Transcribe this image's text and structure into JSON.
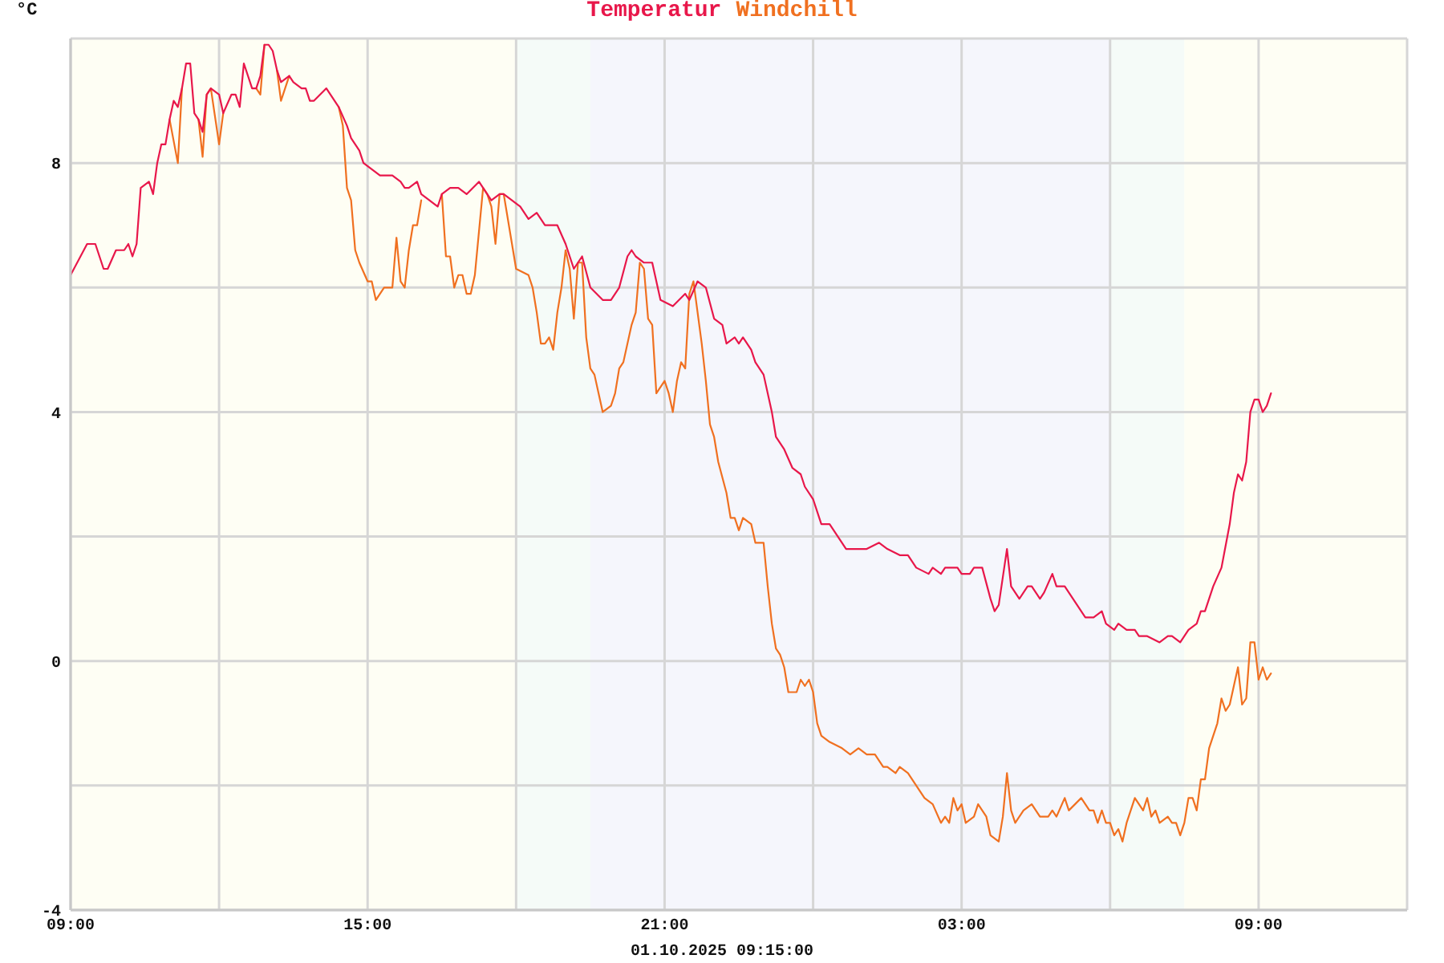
{
  "chart_data": {
    "type": "line",
    "ylabel": "°C",
    "annotations": [
      "01.10.2025 09:15:00"
    ],
    "legend": "top",
    "grid": true,
    "xlim": [
      "2025-09-30T09:00",
      "2025-10-01T12:00"
    ],
    "xticks": [
      {
        "value": "2025-09-30T09:00",
        "label": "09:00"
      },
      {
        "value": "2025-09-30T12:00",
        "label": null
      },
      {
        "value": "2025-09-30T15:00",
        "label": "15:00"
      },
      {
        "value": "2025-09-30T18:00",
        "label": null
      },
      {
        "value": "2025-09-30T21:00",
        "label": "21:00"
      },
      {
        "value": "2025-10-01T00:00",
        "label": null
      },
      {
        "value": "2025-10-01T03:00",
        "label": "03:00"
      },
      {
        "value": "2025-10-01T06:00",
        "label": null
      },
      {
        "value": "2025-10-01T09:00",
        "label": "09:00"
      },
      {
        "value": "2025-10-01T12:00",
        "label": null
      }
    ],
    "ylim": [
      -4,
      10
    ],
    "yticks": [
      -4,
      {
        "value": -2,
        "label": null
      },
      0,
      {
        "value": 2,
        "label": null
      },
      4,
      {
        "value": 6,
        "label": null
      },
      8,
      {
        "value": 10,
        "label": null
      }
    ],
    "bands": [
      {
        "axis": "x",
        "from": "2025-09-30T09:00",
        "to": "2025-09-30T18:00",
        "color": "#fefef4"
      },
      {
        "axis": "x",
        "from": "2025-09-30T18:00",
        "to": "2025-09-30T19:30",
        "color": "#f5fbf8"
      },
      {
        "axis": "x",
        "from": "2025-09-30T19:30",
        "to": "2025-10-01T06:00",
        "color": "#f5f6fc"
      },
      {
        "axis": "x",
        "from": "2025-10-01T06:00",
        "to": "2025-10-01T07:30",
        "color": "#f5fbf8"
      },
      {
        "axis": "x",
        "from": "2025-10-01T07:30",
        "to": "2025-10-01T12:00",
        "color": "#fefef4"
      }
    ],
    "series": [
      {
        "name": "Temperatur",
        "color": "#e8174a",
        "x": [
          "2025-09-30T09:00",
          "2025-09-30T09:20",
          "2025-09-30T09:30",
          "2025-09-30T09:40",
          "2025-09-30T09:45",
          "2025-09-30T09:55",
          "2025-09-30T10:05",
          "2025-09-30T10:10",
          "2025-09-30T10:15",
          "2025-09-30T10:20",
          "2025-09-30T10:25",
          "2025-09-30T10:35",
          "2025-09-30T10:40",
          "2025-09-30T10:45",
          "2025-09-30T10:50",
          "2025-09-30T10:55",
          "2025-09-30T11:00",
          "2025-09-30T11:05",
          "2025-09-30T11:10",
          "2025-09-30T11:15",
          "2025-09-30T11:20",
          "2025-09-30T11:25",
          "2025-09-30T11:30",
          "2025-09-30T11:35",
          "2025-09-30T11:40",
          "2025-09-30T11:45",
          "2025-09-30T11:50",
          "2025-09-30T12:00",
          "2025-09-30T12:05",
          "2025-09-30T12:15",
          "2025-09-30T12:20",
          "2025-09-30T12:25",
          "2025-09-30T12:30",
          "2025-09-30T12:40",
          "2025-09-30T12:45",
          "2025-09-30T12:50",
          "2025-09-30T12:55",
          "2025-09-30T13:00",
          "2025-09-30T13:05",
          "2025-09-30T13:10",
          "2025-09-30T13:15",
          "2025-09-30T13:25",
          "2025-09-30T13:30",
          "2025-09-30T13:40",
          "2025-09-30T13:45",
          "2025-09-30T13:50",
          "2025-09-30T13:55",
          "2025-09-30T14:10",
          "2025-09-30T14:15",
          "2025-09-30T14:25",
          "2025-09-30T14:35",
          "2025-09-30T14:40",
          "2025-09-30T14:50",
          "2025-09-30T14:55",
          "2025-09-30T15:05",
          "2025-09-30T15:15",
          "2025-09-30T15:20",
          "2025-09-30T15:30",
          "2025-09-30T15:40",
          "2025-09-30T15:45",
          "2025-09-30T15:50",
          "2025-09-30T16:00",
          "2025-09-30T16:05",
          "2025-09-30T16:15",
          "2025-09-30T16:25",
          "2025-09-30T16:30",
          "2025-09-30T16:40",
          "2025-09-30T16:50",
          "2025-09-30T17:00",
          "2025-09-30T17:15",
          "2025-09-30T17:25",
          "2025-09-30T17:30",
          "2025-09-30T17:40",
          "2025-09-30T17:45",
          "2025-09-30T17:55",
          "2025-09-30T18:05",
          "2025-09-30T18:15",
          "2025-09-30T18:25",
          "2025-09-30T18:35",
          "2025-09-30T18:50",
          "2025-09-30T19:00",
          "2025-09-30T19:10",
          "2025-09-30T19:20",
          "2025-09-30T19:30",
          "2025-09-30T19:45",
          "2025-09-30T19:55",
          "2025-09-30T20:05",
          "2025-09-30T20:15",
          "2025-09-30T20:20",
          "2025-09-30T20:25",
          "2025-09-30T20:35",
          "2025-09-30T20:45",
          "2025-09-30T20:55",
          "2025-09-30T21:10",
          "2025-09-30T21:25",
          "2025-09-30T21:30",
          "2025-09-30T21:40",
          "2025-09-30T21:50",
          "2025-09-30T22:00",
          "2025-09-30T22:10",
          "2025-09-30T22:15",
          "2025-09-30T22:25",
          "2025-09-30T22:30",
          "2025-09-30T22:35",
          "2025-09-30T22:45",
          "2025-09-30T22:50",
          "2025-09-30T23:00",
          "2025-09-30T23:10",
          "2025-09-30T23:15",
          "2025-09-30T23:25",
          "2025-09-30T23:35",
          "2025-09-30T23:45",
          "2025-09-30T23:50",
          "2025-10-01T00:00",
          "2025-10-01T00:10",
          "2025-10-01T00:20",
          "2025-10-01T00:30",
          "2025-10-01T00:40",
          "2025-10-01T00:50",
          "2025-10-01T01:05",
          "2025-10-01T01:20",
          "2025-10-01T01:30",
          "2025-10-01T01:45",
          "2025-10-01T01:55",
          "2025-10-01T02:05",
          "2025-10-01T02:20",
          "2025-10-01T02:25",
          "2025-10-01T02:35",
          "2025-10-01T02:40",
          "2025-10-01T02:55",
          "2025-10-01T03:00",
          "2025-10-01T03:10",
          "2025-10-01T03:15",
          "2025-10-01T03:25",
          "2025-10-01T03:35",
          "2025-10-01T03:40",
          "2025-10-01T03:45",
          "2025-10-01T03:55",
          "2025-10-01T04:00",
          "2025-10-01T04:10",
          "2025-10-01T04:20",
          "2025-10-01T04:25",
          "2025-10-01T04:35",
          "2025-10-01T04:40",
          "2025-10-01T04:50",
          "2025-10-01T04:55",
          "2025-10-01T05:05",
          "2025-10-01T05:15",
          "2025-10-01T05:20",
          "2025-10-01T05:30",
          "2025-10-01T05:40",
          "2025-10-01T05:50",
          "2025-10-01T05:55",
          "2025-10-01T06:05",
          "2025-10-01T06:10",
          "2025-10-01T06:20",
          "2025-10-01T06:30",
          "2025-10-01T06:35",
          "2025-10-01T06:45",
          "2025-10-01T07:00",
          "2025-10-01T07:10",
          "2025-10-01T07:15",
          "2025-10-01T07:25",
          "2025-10-01T07:35",
          "2025-10-01T07:45",
          "2025-10-01T07:50",
          "2025-10-01T07:55",
          "2025-10-01T08:05",
          "2025-10-01T08:15",
          "2025-10-01T08:25",
          "2025-10-01T08:30",
          "2025-10-01T08:35",
          "2025-10-01T08:40",
          "2025-10-01T08:45",
          "2025-10-01T08:50",
          "2025-10-01T08:55",
          "2025-10-01T09:00",
          "2025-10-01T09:05",
          "2025-10-01T09:10",
          "2025-10-01T09:15"
        ],
        "values": [
          6.2,
          6.7,
          6.7,
          6.3,
          6.3,
          6.6,
          6.6,
          6.7,
          6.5,
          6.7,
          7.6,
          7.7,
          7.5,
          8.0,
          8.3,
          8.3,
          8.7,
          9.0,
          8.9,
          9.2,
          9.6,
          9.6,
          8.8,
          8.7,
          8.5,
          9.1,
          9.2,
          9.1,
          8.8,
          9.1,
          9.1,
          8.9,
          9.6,
          9.2,
          9.2,
          9.4,
          9.9,
          9.9,
          9.8,
          9.5,
          9.3,
          9.4,
          9.3,
          9.2,
          9.2,
          9.0,
          9.0,
          9.2,
          9.1,
          8.9,
          8.6,
          8.4,
          8.2,
          8.0,
          7.9,
          7.8,
          7.8,
          7.8,
          7.7,
          7.6,
          7.6,
          7.7,
          7.5,
          7.4,
          7.3,
          7.5,
          7.6,
          7.6,
          7.5,
          7.7,
          7.5,
          7.4,
          7.5,
          7.5,
          7.4,
          7.3,
          7.1,
          7.2,
          7.0,
          7.0,
          6.7,
          6.3,
          6.5,
          6.0,
          5.8,
          5.8,
          6.0,
          6.5,
          6.6,
          6.5,
          6.4,
          6.4,
          5.8,
          5.7,
          5.9,
          5.8,
          6.1,
          6.0,
          5.5,
          5.4,
          5.1,
          5.2,
          5.1,
          5.2,
          5.0,
          4.8,
          4.6,
          4.0,
          3.6,
          3.4,
          3.1,
          3.0,
          2.8,
          2.6,
          2.2,
          2.2,
          2.0,
          1.8,
          1.8,
          1.8,
          1.9,
          1.8,
          1.7,
          1.7,
          1.5,
          1.4,
          1.5,
          1.4,
          1.5,
          1.5,
          1.4,
          1.4,
          1.5,
          1.5,
          1.0,
          0.8,
          0.9,
          1.8,
          1.2,
          1.0,
          1.2,
          1.2,
          1.0,
          1.1,
          1.4,
          1.2,
          1.2,
          1.0,
          0.9,
          0.7,
          0.7,
          0.8,
          0.6,
          0.5,
          0.6,
          0.5,
          0.5,
          0.4,
          0.4,
          0.3,
          0.4,
          0.4,
          0.3,
          0.5,
          0.6,
          0.8,
          0.8,
          1.2,
          1.5,
          2.2,
          2.7,
          3.0,
          2.9,
          3.2,
          4.0,
          4.2,
          4.2,
          4.0,
          4.1,
          4.3
        ]
      },
      {
        "name": "Windchill",
        "color": "#f07020",
        "x": [
          "2025-09-30T11:00",
          "2025-09-30T11:10",
          "2025-09-30T11:15",
          "2025-09-30T11:25",
          "2025-09-30T11:35",
          "2025-09-30T11:40",
          "2025-09-30T11:45",
          "2025-09-30T11:50",
          "2025-09-30T12:00",
          "2025-09-30T12:05",
          "2025-09-30T12:25",
          "2025-09-30T12:45",
          "2025-09-30T12:50",
          "2025-09-30T12:55",
          "2025-09-30T13:00",
          "2025-09-30T13:10",
          "2025-09-30T13:15",
          "2025-09-30T13:25",
          "2025-09-30T13:50",
          "2025-09-30T14:25",
          "2025-09-30T14:30",
          "2025-09-30T14:35",
          "2025-09-30T14:40",
          "2025-09-30T14:45",
          "2025-09-30T14:50",
          "2025-09-30T15:00",
          "2025-09-30T15:05",
          "2025-09-30T15:10",
          "2025-09-30T15:15",
          "2025-09-30T15:20",
          "2025-09-30T15:30",
          "2025-09-30T15:35",
          "2025-09-30T15:40",
          "2025-09-30T15:45",
          "2025-09-30T15:50",
          "2025-09-30T15:55",
          "2025-09-30T16:00",
          "2025-09-30T16:05",
          "2025-09-30T16:15",
          "2025-09-30T16:30",
          "2025-09-30T16:35",
          "2025-09-30T16:40",
          "2025-09-30T16:45",
          "2025-09-30T16:50",
          "2025-09-30T16:55",
          "2025-09-30T17:00",
          "2025-09-30T17:05",
          "2025-09-30T17:10",
          "2025-09-30T17:20",
          "2025-09-30T17:25",
          "2025-09-30T17:30",
          "2025-09-30T17:35",
          "2025-09-30T17:40",
          "2025-09-30T17:45",
          "2025-09-30T17:55",
          "2025-09-30T18:00",
          "2025-09-30T18:15",
          "2025-09-30T18:20",
          "2025-09-30T18:25",
          "2025-09-30T18:30",
          "2025-09-30T18:35",
          "2025-09-30T18:40",
          "2025-09-30T18:45",
          "2025-09-30T18:50",
          "2025-09-30T18:55",
          "2025-09-30T19:00",
          "2025-09-30T19:05",
          "2025-09-30T19:10",
          "2025-09-30T19:15",
          "2025-09-30T19:20",
          "2025-09-30T19:25",
          "2025-09-30T19:30",
          "2025-09-30T19:35",
          "2025-09-30T19:40",
          "2025-09-30T19:45",
          "2025-09-30T19:55",
          "2025-09-30T20:00",
          "2025-09-30T20:05",
          "2025-09-30T20:10",
          "2025-09-30T20:20",
          "2025-09-30T20:25",
          "2025-09-30T20:30",
          "2025-09-30T20:35",
          "2025-09-30T20:40",
          "2025-09-30T20:45",
          "2025-09-30T20:50",
          "2025-09-30T21:00",
          "2025-09-30T21:05",
          "2025-09-30T21:10",
          "2025-09-30T21:15",
          "2025-09-30T21:20",
          "2025-09-30T21:25",
          "2025-09-30T21:30",
          "2025-09-30T21:35",
          "2025-09-30T21:45",
          "2025-09-30T21:50",
          "2025-09-30T21:55",
          "2025-09-30T22:00",
          "2025-09-30T22:05",
          "2025-09-30T22:15",
          "2025-09-30T22:20",
          "2025-09-30T22:25",
          "2025-09-30T22:30",
          "2025-09-30T22:35",
          "2025-09-30T22:45",
          "2025-09-30T22:50",
          "2025-09-30T23:00",
          "2025-09-30T23:05",
          "2025-09-30T23:10",
          "2025-09-30T23:15",
          "2025-09-30T23:20",
          "2025-09-30T23:25",
          "2025-09-30T23:30",
          "2025-09-30T23:40",
          "2025-09-30T23:45",
          "2025-09-30T23:50",
          "2025-09-30T23:55",
          "2025-10-01T00:00",
          "2025-10-01T00:05",
          "2025-10-01T00:10",
          "2025-10-01T00:20",
          "2025-10-01T00:35",
          "2025-10-01T00:45",
          "2025-10-01T00:55",
          "2025-10-01T01:05",
          "2025-10-01T01:15",
          "2025-10-01T01:25",
          "2025-10-01T01:30",
          "2025-10-01T01:40",
          "2025-10-01T01:45",
          "2025-10-01T01:55",
          "2025-10-01T02:05",
          "2025-10-01T02:15",
          "2025-10-01T02:25",
          "2025-10-01T02:35",
          "2025-10-01T02:40",
          "2025-10-01T02:45",
          "2025-10-01T02:50",
          "2025-10-01T02:55",
          "2025-10-01T03:00",
          "2025-10-01T03:05",
          "2025-10-01T03:15",
          "2025-10-01T03:20",
          "2025-10-01T03:30",
          "2025-10-01T03:35",
          "2025-10-01T03:45",
          "2025-10-01T03:50",
          "2025-10-01T03:55",
          "2025-10-01T04:00",
          "2025-10-01T04:05",
          "2025-10-01T04:15",
          "2025-10-01T04:25",
          "2025-10-01T04:30",
          "2025-10-01T04:35",
          "2025-10-01T04:45",
          "2025-10-01T04:50",
          "2025-10-01T04:55",
          "2025-10-01T05:05",
          "2025-10-01T05:10",
          "2025-10-01T05:25",
          "2025-10-01T05:35",
          "2025-10-01T05:40",
          "2025-10-01T05:45",
          "2025-10-01T05:50",
          "2025-10-01T05:55",
          "2025-10-01T06:00",
          "2025-10-01T06:05",
          "2025-10-01T06:10",
          "2025-10-01T06:15",
          "2025-10-01T06:20",
          "2025-10-01T06:30",
          "2025-10-01T06:35",
          "2025-10-01T06:40",
          "2025-10-01T06:45",
          "2025-10-01T06:50",
          "2025-10-01T06:55",
          "2025-10-01T07:00",
          "2025-10-01T07:10",
          "2025-10-01T07:15",
          "2025-10-01T07:20",
          "2025-10-01T07:25",
          "2025-10-01T07:30",
          "2025-10-01T07:35",
          "2025-10-01T07:40",
          "2025-10-01T07:45",
          "2025-10-01T07:50",
          "2025-10-01T07:55",
          "2025-10-01T08:00",
          "2025-10-01T08:10",
          "2025-10-01T08:15",
          "2025-10-01T08:20",
          "2025-10-01T08:25",
          "2025-10-01T08:30",
          "2025-10-01T08:35",
          "2025-10-01T08:40",
          "2025-10-01T08:45",
          "2025-10-01T08:50",
          "2025-10-01T08:55",
          "2025-10-01T09:00",
          "2025-10-01T09:05",
          "2025-10-01T09:10",
          "2025-10-01T09:15"
        ],
        "values": [
          8.7,
          8.0,
          9.2,
          null,
          8.7,
          8.1,
          9.1,
          9.2,
          8.3,
          8.8,
          null,
          9.2,
          9.1,
          9.9,
          null,
          9.5,
          9.0,
          9.4,
          null,
          8.9,
          8.6,
          7.6,
          7.4,
          6.6,
          6.4,
          6.1,
          6.1,
          5.8,
          5.9,
          6.0,
          6.0,
          6.8,
          6.1,
          6.0,
          6.6,
          7.0,
          7.0,
          7.4,
          null,
          7.5,
          6.5,
          6.5,
          6.0,
          6.2,
          6.2,
          5.9,
          5.9,
          6.2,
          7.6,
          7.5,
          7.3,
          6.7,
          7.5,
          7.5,
          6.7,
          6.3,
          6.2,
          6.0,
          5.6,
          5.1,
          5.1,
          5.2,
          5.0,
          5.6,
          6.0,
          6.6,
          6.3,
          5.5,
          6.4,
          6.4,
          5.2,
          4.7,
          4.6,
          4.3,
          4.0,
          4.1,
          4.3,
          4.7,
          4.8,
          5.4,
          5.6,
          6.4,
          6.3,
          5.5,
          5.4,
          4.3,
          4.5,
          4.3,
          4.0,
          4.5,
          4.8,
          4.7,
          5.9,
          6.1,
          5.1,
          4.5,
          3.8,
          3.6,
          3.2,
          2.7,
          2.3,
          2.3,
          2.1,
          2.3,
          2.2,
          1.9,
          1.9,
          1.2,
          0.6,
          0.2,
          0.1,
          -0.1,
          -0.5,
          -0.5,
          -0.3,
          -0.4,
          -0.3,
          -0.5,
          -1.0,
          -1.2,
          -1.3,
          -1.4,
          -1.5,
          -1.4,
          -1.5,
          -1.5,
          -1.7,
          -1.7,
          -1.8,
          -1.7,
          -1.8,
          -2.0,
          -2.2,
          -2.3,
          -2.6,
          -2.5,
          -2.6,
          -2.2,
          -2.4,
          -2.3,
          -2.6,
          -2.5,
          -2.3,
          -2.5,
          -2.8,
          -2.9,
          -2.5,
          -1.8,
          -2.4,
          -2.6,
          -2.4,
          -2.3,
          -2.4,
          -2.5,
          -2.5,
          -2.4,
          -2.5,
          -2.2,
          -2.4,
          -2.2,
          -2.4,
          -2.4,
          -2.6,
          -2.4,
          -2.6,
          -2.6,
          -2.8,
          -2.7,
          -2.9,
          -2.6,
          -2.2,
          -2.3,
          -2.4,
          -2.2,
          -2.5,
          -2.4,
          -2.6,
          -2.5,
          -2.6,
          -2.6,
          -2.8,
          -2.6,
          -2.2,
          -2.2,
          -2.4,
          -1.9,
          -1.9,
          -1.4,
          -1.0,
          -0.6,
          -0.8,
          -0.7,
          -0.4,
          -0.1,
          -0.7,
          -0.6,
          0.3,
          0.3,
          -0.3,
          -0.1,
          -0.3,
          -0.2
        ]
      }
    ]
  }
}
